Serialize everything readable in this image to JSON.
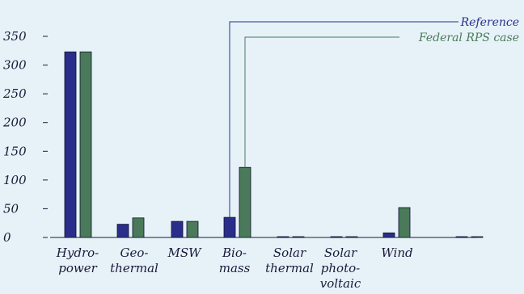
{
  "chart_data": {
    "type": "bar",
    "categories": [
      [
        "Hydro-",
        "power"
      ],
      [
        "Geo-",
        "thermal"
      ],
      [
        "MSW"
      ],
      [
        "Bio-",
        "mass"
      ],
      [
        "Solar",
        "thermal"
      ],
      [
        "Solar",
        "photo-",
        "voltaic"
      ],
      [
        "Wind"
      ],
      [
        ""
      ]
    ],
    "series": [
      {
        "name": "Reference",
        "color": "#2a2e8a",
        "values": [
          323,
          23,
          28,
          35,
          1,
          1,
          8,
          0
        ]
      },
      {
        "name": "Federal RPS case",
        "color": "#4a7a5a",
        "values": [
          323,
          34,
          28,
          122,
          1,
          1,
          52,
          0
        ]
      }
    ],
    "yticks": [
      0,
      50,
      100,
      150,
      200,
      250,
      300,
      350
    ],
    "ylim": [
      0,
      350
    ],
    "grid": false,
    "legend": "top-right"
  }
}
